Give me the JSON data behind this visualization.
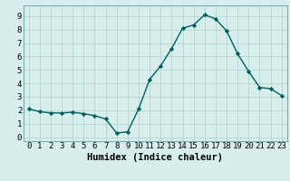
{
  "x": [
    0,
    1,
    2,
    3,
    4,
    5,
    6,
    7,
    8,
    9,
    10,
    11,
    12,
    13,
    14,
    15,
    16,
    17,
    18,
    19,
    20,
    21,
    22,
    23
  ],
  "y": [
    2.1,
    1.9,
    1.8,
    1.8,
    1.85,
    1.75,
    1.6,
    1.35,
    0.3,
    0.4,
    2.1,
    4.3,
    5.3,
    6.6,
    8.1,
    8.35,
    9.1,
    8.8,
    7.9,
    6.2,
    4.9,
    3.7,
    3.6,
    3.1
  ],
  "line_color": "#006060",
  "marker": "D",
  "marker_size": 2.2,
  "xlabel": "Humidex (Indice chaleur)",
  "xlim": [
    -0.5,
    23.5
  ],
  "ylim": [
    -0.3,
    9.8
  ],
  "xticks": [
    0,
    1,
    2,
    3,
    4,
    5,
    6,
    7,
    8,
    9,
    10,
    11,
    12,
    13,
    14,
    15,
    16,
    17,
    18,
    19,
    20,
    21,
    22,
    23
  ],
  "yticks": [
    0,
    1,
    2,
    3,
    4,
    5,
    6,
    7,
    8,
    9
  ],
  "bg_color": "#d8eeed",
  "grid_color": "#b8d8d5",
  "xlabel_fontsize": 7.5,
  "tick_fontsize": 6.5,
  "line_width": 1.0
}
